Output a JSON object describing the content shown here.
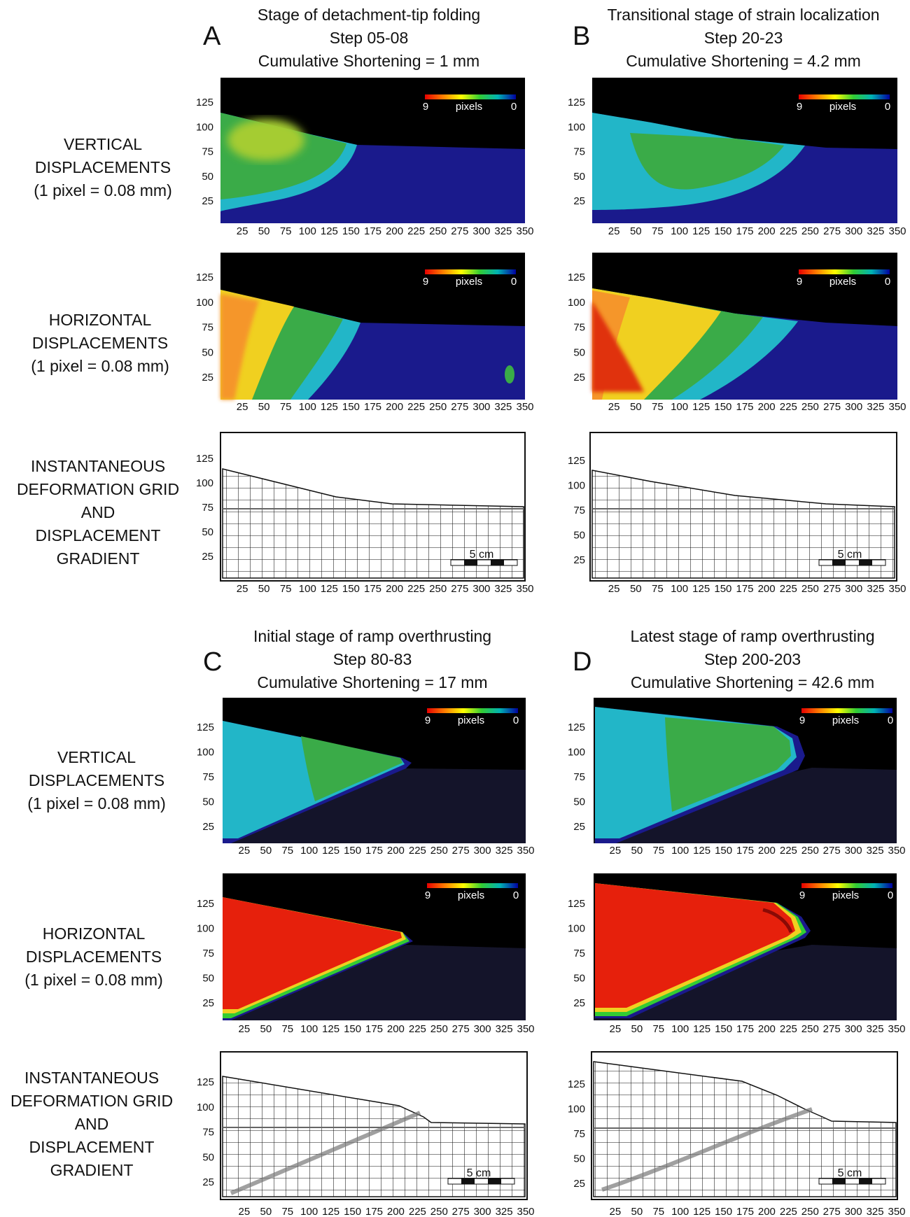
{
  "figure": {
    "units_note": "(1 pixel = 0.08 mm)",
    "row_labels": {
      "vertical": [
        "VERTICAL",
        "DISPLACEMENTS",
        "(1 pixel = 0.08 mm)"
      ],
      "horizontal": [
        "HORIZONTAL",
        "DISPLACEMENTS",
        "(1 pixel = 0.08 mm)"
      ],
      "grid": [
        "INSTANTANEOUS",
        "DEFORMATION GRID",
        "AND",
        "DISPLACEMENT",
        "GRADIENT"
      ]
    },
    "colorbar": {
      "max_label": "9",
      "unit_label": "pixels",
      "min_label": "0",
      "colors": [
        "#e60000",
        "#ff8000",
        "#ffff00",
        "#33cc33",
        "#00b3b3",
        "#0000a0"
      ]
    },
    "scale_bar_label": "5 cm",
    "x_ticks": [
      25,
      50,
      75,
      100,
      125,
      150,
      175,
      200,
      225,
      250,
      275,
      300,
      325,
      350
    ],
    "y_ticks": [
      25,
      50,
      75,
      100,
      125
    ],
    "panels": [
      {
        "letter": "A",
        "title": "Stage of detachment-tip folding",
        "step": "Step 05-08",
        "shortening": "Cumulative Shortening = 1 mm"
      },
      {
        "letter": "B",
        "title": "Transitional stage of strain localization",
        "step": "Step 20-23",
        "shortening": "Cumulative Shortening = 4.2 mm"
      },
      {
        "letter": "C",
        "title": "Initial stage of ramp overthrusting",
        "step": "Step 80-83",
        "shortening": "Cumulative Shortening = 17 mm"
      },
      {
        "letter": "D",
        "title": "Latest stage of ramp overthrusting",
        "step": "Step 200-203",
        "shortening": "Cumulative Shortening = 42.6 mm"
      }
    ]
  }
}
